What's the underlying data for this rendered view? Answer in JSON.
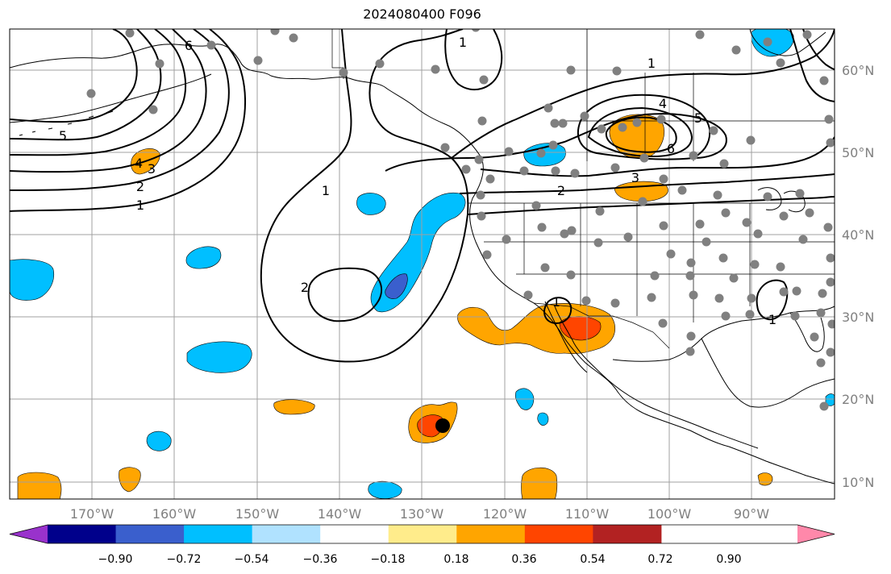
{
  "title": "2024080400 F096",
  "map": {
    "lon_labels": [
      "170°W",
      "160°W",
      "150°W",
      "140°W",
      "130°W",
      "120°W",
      "110°W",
      "100°W",
      "90°W"
    ],
    "lat_labels": [
      "60°N",
      "50°N",
      "40°N",
      "30°N",
      "20°N",
      "10°N"
    ],
    "contour_labels": [
      "1",
      "2",
      "3",
      "4",
      "5",
      "6",
      "1",
      "2",
      "1",
      "2",
      "3",
      "4",
      "5",
      "1",
      "1",
      "1"
    ]
  },
  "colorbar": {
    "tick_labels": [
      "−0.90",
      "−0.72",
      "−0.54",
      "−0.36",
      "−0.18",
      "0.18",
      "0.36",
      "0.54",
      "0.72",
      "0.90"
    ],
    "colors": [
      "#9932CC",
      "#00008B",
      "#3A5FCD",
      "#00BFFF",
      "#B0E2FF",
      "#FFFFFF",
      "#FFEC8B",
      "#FFA500",
      "#FF4500",
      "#B22222",
      "#FF88AA"
    ]
  },
  "colors": {
    "station": "#808080",
    "contour": "#000000",
    "grid": "#a0a0a0",
    "coast": "#000000"
  },
  "icons": [
    "station-dot-icon",
    "storm-center-icon"
  ]
}
